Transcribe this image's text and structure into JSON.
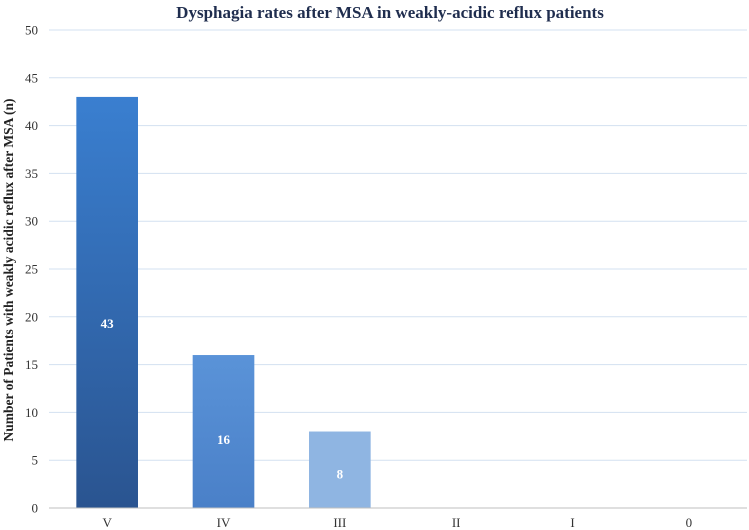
{
  "chart_data": {
    "type": "bar",
    "title": "Dysphagia rates after MSA in weakly-acidic reflux patients",
    "xlabel": "",
    "ylabel": "Number of Patients with weakly acidic reflux after MSA (n)",
    "categories": [
      "V",
      "IV",
      "III",
      "II",
      "I",
      "0"
    ],
    "values": [
      43,
      16,
      8,
      0,
      0,
      0
    ],
    "data_labels": [
      "43",
      "16",
      "8",
      "",
      "",
      ""
    ],
    "ylim": [
      0,
      50
    ],
    "yticks": [
      0,
      5,
      10,
      15,
      20,
      25,
      30,
      35,
      40,
      45,
      50
    ],
    "grid": true,
    "bar_colors": [
      [
        "#3a7fd0",
        "#2a5490"
      ],
      [
        "#5a93d8",
        "#4a80c8"
      ],
      [
        "#8fb5e2",
        "#8fb5e2"
      ],
      [
        "#a9c6ea",
        "#a9c6ea"
      ],
      [
        "#c0d6f0",
        "#c0d6f0"
      ],
      [
        "#d4e3f5",
        "#d4e3f5"
      ]
    ]
  }
}
